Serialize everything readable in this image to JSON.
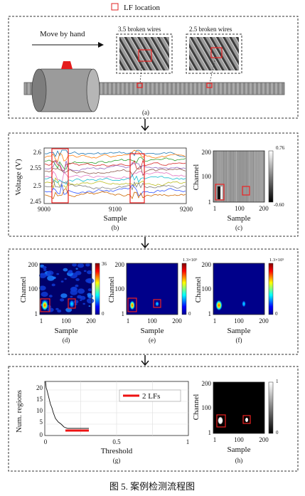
{
  "legend_top": {
    "label": "LF location",
    "color": "#e22222"
  },
  "panel_a": {
    "move_label": "Move by hand",
    "inset1_label": "3.5 broken wires",
    "inset2_label": "2.5 broken wires",
    "caption": "(a)"
  },
  "panel_b": {
    "ylabel": "Voltage (V)",
    "xlabel": "Sample",
    "caption": "(b)",
    "yticks": [
      "2.6",
      "2.55",
      "2.5",
      "2.45"
    ],
    "xticks": [
      "9000",
      "9100",
      "9200"
    ],
    "series_colors": [
      "#1f77b4",
      "#ff7f0e",
      "#2ca02c",
      "#d62728",
      "#9467bd",
      "#8c564b",
      "#e377c2",
      "#17becf",
      "#bcbd22",
      "#7f7f7f",
      "#3355ff",
      "#cc6600"
    ]
  },
  "panel_c": {
    "ylabel": "Channel",
    "xlabel": "Sample",
    "caption": "(c)",
    "yticks": [
      "200",
      "100",
      "1"
    ],
    "xticks": [
      "1",
      "100",
      "200"
    ],
    "cbar_max": "0.76",
    "cbar_min": "-0.60"
  },
  "panel_d": {
    "ylabel": "Channel",
    "xlabel": "Sample",
    "caption": "(d)",
    "yticks": [
      "200",
      "100",
      "1"
    ],
    "xticks": [
      "1",
      "100",
      "200"
    ],
    "cbar_max": "36",
    "cbar_min": "0"
  },
  "panel_e": {
    "ylabel": "Channel",
    "xlabel": "Sample",
    "caption": "(e)",
    "yticks": [
      "200",
      "100",
      "1"
    ],
    "xticks": [
      "1",
      "100",
      "200"
    ],
    "cbar_max": "1.3×10⁵",
    "cbar_min": "0"
  },
  "panel_f": {
    "ylabel": "Channel",
    "xlabel": "Sample",
    "caption": "(f)",
    "yticks": [
      "200",
      "100",
      "1"
    ],
    "xticks": [
      "1",
      "100",
      "200"
    ],
    "cbar_max": "1.3×10⁵",
    "cbar_min": "0"
  },
  "panel_g": {
    "ylabel": "Num. regions",
    "xlabel": "Threshold",
    "caption": "(g)",
    "yticks": [
      "20",
      "15",
      "10",
      "5",
      "0"
    ],
    "xticks": [
      "0",
      "0.5",
      "1"
    ],
    "legend_label": "2 LFs"
  },
  "panel_h": {
    "ylabel": "Channel",
    "xlabel": "Sample",
    "caption": "(h)",
    "yticks": [
      "200",
      "100",
      "1"
    ],
    "xticks": [
      "1",
      "100",
      "200"
    ],
    "cbar_max": "1",
    "cbar_min": "0"
  },
  "figure_caption": "图 5.  案例检测流程图"
}
